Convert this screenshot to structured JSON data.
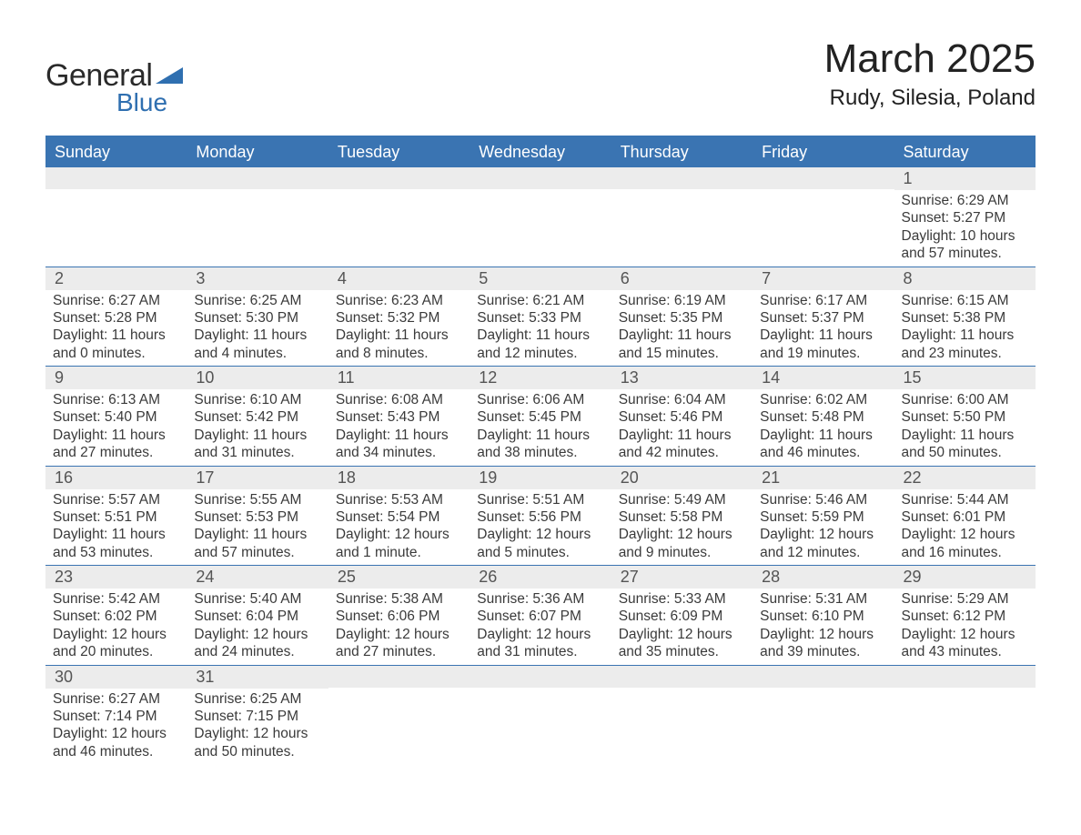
{
  "logo": {
    "text1": "General",
    "text2": "Blue"
  },
  "title": "March 2025",
  "location": "Rudy, Silesia, Poland",
  "colors": {
    "header_bg": "#3a74b2",
    "header_text": "#ffffff",
    "daynum_bg": "#ececec",
    "border": "#3a74b2",
    "text": "#3a3a3a"
  },
  "day_headers": [
    "Sunday",
    "Monday",
    "Tuesday",
    "Wednesday",
    "Thursday",
    "Friday",
    "Saturday"
  ],
  "weeks": [
    [
      {
        "n": "",
        "sr": "",
        "ss": "",
        "dl1": "",
        "dl2": ""
      },
      {
        "n": "",
        "sr": "",
        "ss": "",
        "dl1": "",
        "dl2": ""
      },
      {
        "n": "",
        "sr": "",
        "ss": "",
        "dl1": "",
        "dl2": ""
      },
      {
        "n": "",
        "sr": "",
        "ss": "",
        "dl1": "",
        "dl2": ""
      },
      {
        "n": "",
        "sr": "",
        "ss": "",
        "dl1": "",
        "dl2": ""
      },
      {
        "n": "",
        "sr": "",
        "ss": "",
        "dl1": "",
        "dl2": ""
      },
      {
        "n": "1",
        "sr": "Sunrise: 6:29 AM",
        "ss": "Sunset: 5:27 PM",
        "dl1": "Daylight: 10 hours",
        "dl2": "and 57 minutes."
      }
    ],
    [
      {
        "n": "2",
        "sr": "Sunrise: 6:27 AM",
        "ss": "Sunset: 5:28 PM",
        "dl1": "Daylight: 11 hours",
        "dl2": "and 0 minutes."
      },
      {
        "n": "3",
        "sr": "Sunrise: 6:25 AM",
        "ss": "Sunset: 5:30 PM",
        "dl1": "Daylight: 11 hours",
        "dl2": "and 4 minutes."
      },
      {
        "n": "4",
        "sr": "Sunrise: 6:23 AM",
        "ss": "Sunset: 5:32 PM",
        "dl1": "Daylight: 11 hours",
        "dl2": "and 8 minutes."
      },
      {
        "n": "5",
        "sr": "Sunrise: 6:21 AM",
        "ss": "Sunset: 5:33 PM",
        "dl1": "Daylight: 11 hours",
        "dl2": "and 12 minutes."
      },
      {
        "n": "6",
        "sr": "Sunrise: 6:19 AM",
        "ss": "Sunset: 5:35 PM",
        "dl1": "Daylight: 11 hours",
        "dl2": "and 15 minutes."
      },
      {
        "n": "7",
        "sr": "Sunrise: 6:17 AM",
        "ss": "Sunset: 5:37 PM",
        "dl1": "Daylight: 11 hours",
        "dl2": "and 19 minutes."
      },
      {
        "n": "8",
        "sr": "Sunrise: 6:15 AM",
        "ss": "Sunset: 5:38 PM",
        "dl1": "Daylight: 11 hours",
        "dl2": "and 23 minutes."
      }
    ],
    [
      {
        "n": "9",
        "sr": "Sunrise: 6:13 AM",
        "ss": "Sunset: 5:40 PM",
        "dl1": "Daylight: 11 hours",
        "dl2": "and 27 minutes."
      },
      {
        "n": "10",
        "sr": "Sunrise: 6:10 AM",
        "ss": "Sunset: 5:42 PM",
        "dl1": "Daylight: 11 hours",
        "dl2": "and 31 minutes."
      },
      {
        "n": "11",
        "sr": "Sunrise: 6:08 AM",
        "ss": "Sunset: 5:43 PM",
        "dl1": "Daylight: 11 hours",
        "dl2": "and 34 minutes."
      },
      {
        "n": "12",
        "sr": "Sunrise: 6:06 AM",
        "ss": "Sunset: 5:45 PM",
        "dl1": "Daylight: 11 hours",
        "dl2": "and 38 minutes."
      },
      {
        "n": "13",
        "sr": "Sunrise: 6:04 AM",
        "ss": "Sunset: 5:46 PM",
        "dl1": "Daylight: 11 hours",
        "dl2": "and 42 minutes."
      },
      {
        "n": "14",
        "sr": "Sunrise: 6:02 AM",
        "ss": "Sunset: 5:48 PM",
        "dl1": "Daylight: 11 hours",
        "dl2": "and 46 minutes."
      },
      {
        "n": "15",
        "sr": "Sunrise: 6:00 AM",
        "ss": "Sunset: 5:50 PM",
        "dl1": "Daylight: 11 hours",
        "dl2": "and 50 minutes."
      }
    ],
    [
      {
        "n": "16",
        "sr": "Sunrise: 5:57 AM",
        "ss": "Sunset: 5:51 PM",
        "dl1": "Daylight: 11 hours",
        "dl2": "and 53 minutes."
      },
      {
        "n": "17",
        "sr": "Sunrise: 5:55 AM",
        "ss": "Sunset: 5:53 PM",
        "dl1": "Daylight: 11 hours",
        "dl2": "and 57 minutes."
      },
      {
        "n": "18",
        "sr": "Sunrise: 5:53 AM",
        "ss": "Sunset: 5:54 PM",
        "dl1": "Daylight: 12 hours",
        "dl2": "and 1 minute."
      },
      {
        "n": "19",
        "sr": "Sunrise: 5:51 AM",
        "ss": "Sunset: 5:56 PM",
        "dl1": "Daylight: 12 hours",
        "dl2": "and 5 minutes."
      },
      {
        "n": "20",
        "sr": "Sunrise: 5:49 AM",
        "ss": "Sunset: 5:58 PM",
        "dl1": "Daylight: 12 hours",
        "dl2": "and 9 minutes."
      },
      {
        "n": "21",
        "sr": "Sunrise: 5:46 AM",
        "ss": "Sunset: 5:59 PM",
        "dl1": "Daylight: 12 hours",
        "dl2": "and 12 minutes."
      },
      {
        "n": "22",
        "sr": "Sunrise: 5:44 AM",
        "ss": "Sunset: 6:01 PM",
        "dl1": "Daylight: 12 hours",
        "dl2": "and 16 minutes."
      }
    ],
    [
      {
        "n": "23",
        "sr": "Sunrise: 5:42 AM",
        "ss": "Sunset: 6:02 PM",
        "dl1": "Daylight: 12 hours",
        "dl2": "and 20 minutes."
      },
      {
        "n": "24",
        "sr": "Sunrise: 5:40 AM",
        "ss": "Sunset: 6:04 PM",
        "dl1": "Daylight: 12 hours",
        "dl2": "and 24 minutes."
      },
      {
        "n": "25",
        "sr": "Sunrise: 5:38 AM",
        "ss": "Sunset: 6:06 PM",
        "dl1": "Daylight: 12 hours",
        "dl2": "and 27 minutes."
      },
      {
        "n": "26",
        "sr": "Sunrise: 5:36 AM",
        "ss": "Sunset: 6:07 PM",
        "dl1": "Daylight: 12 hours",
        "dl2": "and 31 minutes."
      },
      {
        "n": "27",
        "sr": "Sunrise: 5:33 AM",
        "ss": "Sunset: 6:09 PM",
        "dl1": "Daylight: 12 hours",
        "dl2": "and 35 minutes."
      },
      {
        "n": "28",
        "sr": "Sunrise: 5:31 AM",
        "ss": "Sunset: 6:10 PM",
        "dl1": "Daylight: 12 hours",
        "dl2": "and 39 minutes."
      },
      {
        "n": "29",
        "sr": "Sunrise: 5:29 AM",
        "ss": "Sunset: 6:12 PM",
        "dl1": "Daylight: 12 hours",
        "dl2": "and 43 minutes."
      }
    ],
    [
      {
        "n": "30",
        "sr": "Sunrise: 6:27 AM",
        "ss": "Sunset: 7:14 PM",
        "dl1": "Daylight: 12 hours",
        "dl2": "and 46 minutes."
      },
      {
        "n": "31",
        "sr": "Sunrise: 6:25 AM",
        "ss": "Sunset: 7:15 PM",
        "dl1": "Daylight: 12 hours",
        "dl2": "and 50 minutes."
      },
      {
        "n": "",
        "sr": "",
        "ss": "",
        "dl1": "",
        "dl2": ""
      },
      {
        "n": "",
        "sr": "",
        "ss": "",
        "dl1": "",
        "dl2": ""
      },
      {
        "n": "",
        "sr": "",
        "ss": "",
        "dl1": "",
        "dl2": ""
      },
      {
        "n": "",
        "sr": "",
        "ss": "",
        "dl1": "",
        "dl2": ""
      },
      {
        "n": "",
        "sr": "",
        "ss": "",
        "dl1": "",
        "dl2": ""
      }
    ]
  ]
}
